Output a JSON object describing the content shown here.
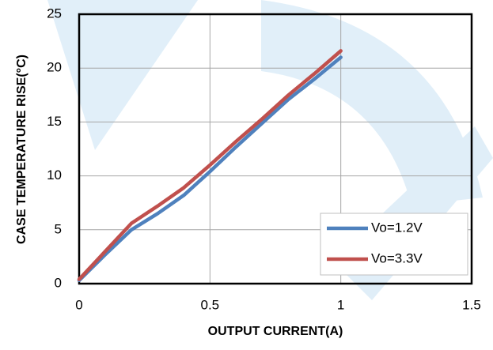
{
  "chart_data": {
    "type": "line",
    "x_label": "OUTPUT CURRENT(A)",
    "y_label": "CASE TEMPERATURE RISE(°C)",
    "x": [
      0,
      0.1,
      0.2,
      0.3,
      0.4,
      0.5,
      0.6,
      0.7,
      0.8,
      0.9,
      1.0
    ],
    "series": [
      {
        "name": "Vo=1.2V",
        "color": "#4f81bd",
        "values": [
          0.3,
          2.7,
          5.0,
          6.5,
          8.2,
          10.4,
          12.7,
          14.9,
          17.1,
          19.0,
          21.0
        ]
      },
      {
        "name": "Vo=3.3V",
        "color": "#c0504d",
        "values": [
          0.4,
          3.0,
          5.6,
          7.2,
          8.9,
          11.0,
          13.2,
          15.3,
          17.5,
          19.5,
          21.6
        ]
      }
    ],
    "xlim": [
      0,
      1.5
    ],
    "xticks": [
      0,
      0.5,
      1,
      1.5
    ],
    "ylim": [
      0,
      25
    ],
    "yticks": [
      0,
      5,
      10,
      15,
      20,
      25
    ],
    "grid": true,
    "legend": "lower right"
  }
}
